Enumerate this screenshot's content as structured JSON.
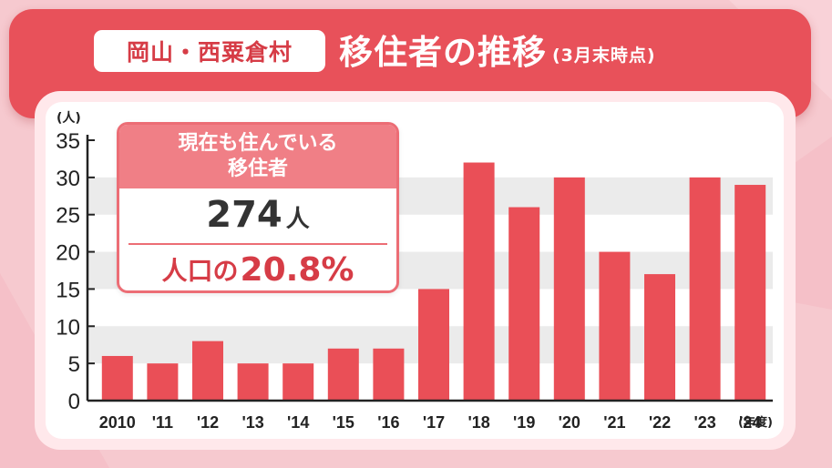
{
  "header": {
    "place": "岡山・西粟倉村",
    "title": "移住者の推移",
    "note": "(3月末時点)"
  },
  "callout": {
    "head_line1": "現在も住んでいる",
    "head_line2": "移住者",
    "value": "274",
    "value_unit": "人",
    "ratio_label": "人口の",
    "ratio_value": "20.8%"
  },
  "colors": {
    "bar": "#ea4f57",
    "header": "#e8515a",
    "background": "#f6c9cf",
    "stripe": "#ebebeb"
  },
  "chart_data": {
    "type": "bar",
    "categories": [
      "2010",
      "'11",
      "'12",
      "'13",
      "'14",
      "'15",
      "'16",
      "'17",
      "'18",
      "'19",
      "'20",
      "'21",
      "'22",
      "'23",
      "'24"
    ],
    "values": [
      6,
      5,
      8,
      5,
      5,
      7,
      7,
      15,
      32,
      26,
      30,
      20,
      17,
      30,
      29
    ],
    "yticks": [
      "0",
      "5",
      "10",
      "15",
      "20",
      "25",
      "30",
      "35"
    ],
    "ylim": [
      0,
      35
    ],
    "y_unit": "(人)",
    "x_unit": "(年度)",
    "grid": "horizontal bands"
  }
}
